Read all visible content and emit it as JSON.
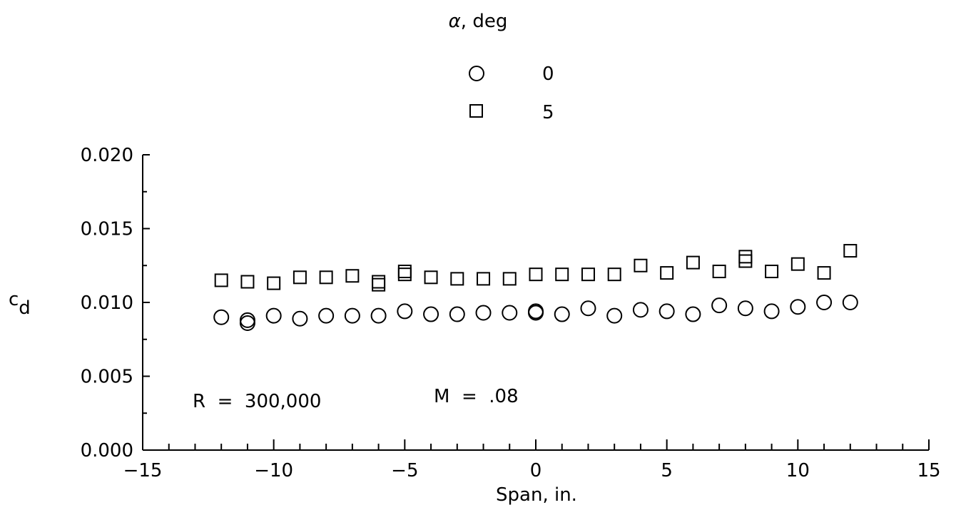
{
  "chart_data": {
    "type": "scatter",
    "title": "",
    "xlabel": "Span, in.",
    "ylabel_main": "c",
    "ylabel_sub": "d",
    "xlim": [
      -15,
      15
    ],
    "ylim": [
      0,
      0.02
    ],
    "x_ticks": [
      -15,
      -10,
      -5,
      0,
      5,
      10,
      15
    ],
    "x_tick_labels": [
      "−15",
      "−10",
      "−5",
      "0",
      "5",
      "10",
      "15"
    ],
    "x_minor_step": 1,
    "y_ticks": [
      0,
      0.005,
      0.01,
      0.015,
      0.02
    ],
    "y_tick_labels": [
      "0.000",
      "0.005",
      "0.010",
      "0.015",
      "0.020"
    ],
    "y_minor_step": 0.0025,
    "grid": false,
    "legend": {
      "title_symbol": "α",
      "title_rest": ", deg",
      "position": "top-center"
    },
    "annotations": {
      "reynolds": "R  =  300,000",
      "mach": "M  =  .08"
    },
    "series": [
      {
        "name": "0",
        "marker": "circle",
        "x": [
          -12,
          -11,
          -11,
          -10,
          -9,
          -8,
          -7,
          -6,
          -5,
          -4,
          -3,
          -2,
          -1,
          0,
          0,
          1,
          2,
          3,
          4,
          5,
          6,
          7,
          8,
          9,
          10,
          11,
          12
        ],
        "y": [
          0.009,
          0.0088,
          0.0086,
          0.0091,
          0.0089,
          0.0091,
          0.0091,
          0.0091,
          0.0094,
          0.0092,
          0.0092,
          0.0093,
          0.0093,
          0.0093,
          0.0094,
          0.0092,
          0.0096,
          0.0091,
          0.0095,
          0.0094,
          0.0092,
          0.0098,
          0.0096,
          0.0094,
          0.0097,
          0.01,
          0.01
        ]
      },
      {
        "name": "5",
        "marker": "square",
        "x": [
          -12,
          -11,
          -10,
          -9,
          -8,
          -7,
          -6,
          -6,
          -5,
          -5,
          -4,
          -3,
          -2,
          -1,
          0,
          1,
          2,
          3,
          4,
          5,
          6,
          7,
          8,
          8,
          9,
          10,
          11,
          12
        ],
        "y": [
          0.0115,
          0.0114,
          0.0113,
          0.0117,
          0.0117,
          0.0118,
          0.0114,
          0.0112,
          0.0121,
          0.0119,
          0.0117,
          0.0116,
          0.0116,
          0.0116,
          0.0119,
          0.0119,
          0.0119,
          0.0119,
          0.0125,
          0.012,
          0.0127,
          0.0121,
          0.0131,
          0.0128,
          0.0121,
          0.0126,
          0.012,
          0.0135
        ]
      }
    ]
  }
}
